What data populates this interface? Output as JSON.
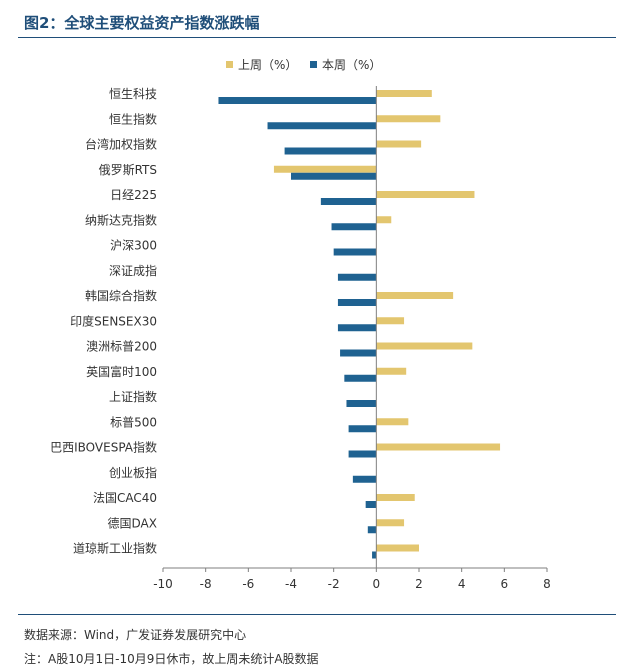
{
  "chart_data": {
    "type": "bar",
    "orientation": "horizontal",
    "title": "图2：全球主要权益资产指数涨跌幅",
    "categories": [
      "恒生科技",
      "恒生指数",
      "台湾加权指数",
      "俄罗斯RTS",
      "日经225",
      "纳斯达克指数",
      "沪深300",
      "深证成指",
      "韩国综合指数",
      "印度SENSEX30",
      "澳洲标普200",
      "英国富时100",
      "上证指数",
      "标普500",
      "巴西IBOVESPA指数",
      "创业板指",
      "法国CAC40",
      "德国DAX",
      "道琼斯工业指数"
    ],
    "series": [
      {
        "name": "上周（%）",
        "color": "#e3c66f",
        "values": [
          2.6,
          3.0,
          2.1,
          -4.8,
          4.6,
          0.7,
          0.0,
          0.0,
          3.6,
          1.3,
          4.5,
          1.4,
          0.0,
          1.5,
          5.8,
          0.0,
          1.8,
          1.3,
          2.0
        ]
      },
      {
        "name": "本周（%）",
        "color": "#1f6291",
        "values": [
          -7.4,
          -5.1,
          -4.3,
          -4.0,
          -2.6,
          -2.1,
          -2.0,
          -1.8,
          -1.8,
          -1.8,
          -1.7,
          -1.5,
          -1.4,
          -1.3,
          -1.3,
          -1.1,
          -0.5,
          -0.4,
          -0.2
        ]
      }
    ],
    "xlim": [
      -10,
      8
    ],
    "xticks": [
      "-10",
      "-8",
      "-6",
      "-4",
      "-2",
      "0",
      "2",
      "4",
      "6",
      "8"
    ],
    "xlabel": "",
    "ylabel": "",
    "grid": false,
    "legend_position": "top-center"
  },
  "footer": {
    "source": "数据来源：Wind，广发证券发展研究中心",
    "note": "注：A股10月1日-10月9日休市，故上周未统计A股数据"
  }
}
